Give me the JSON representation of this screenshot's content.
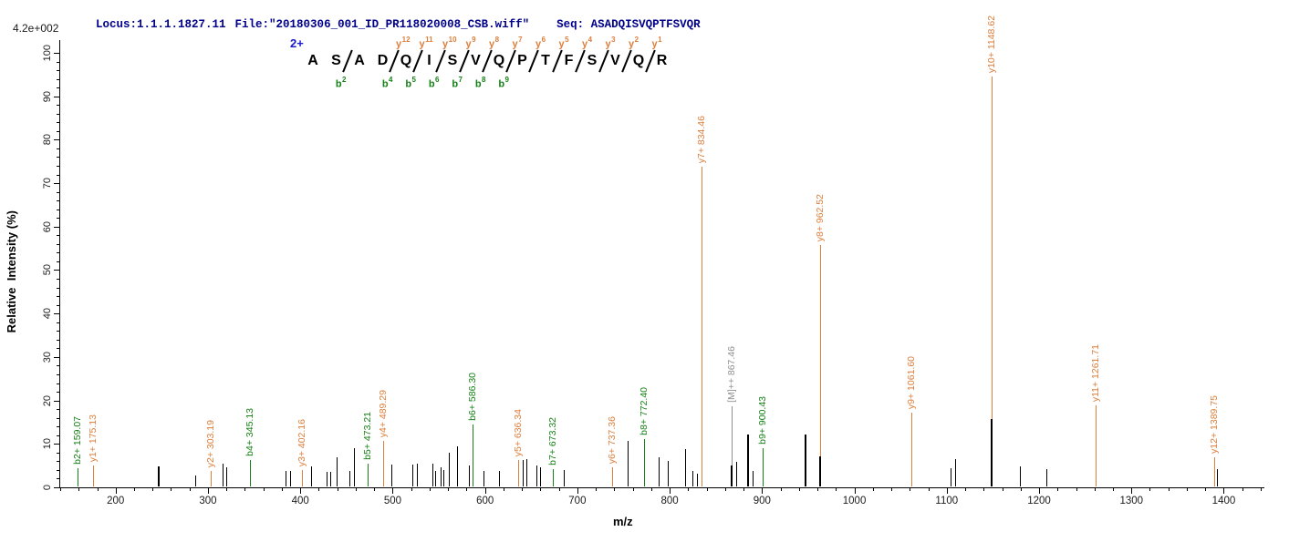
{
  "header": {
    "locus": "Locus:1.1.1.1827.11",
    "file": "File:\"20180306_001_ID_PR118020008_CSB.wiff\"",
    "seq": "Seq: ASADQISVQPTFSVQR"
  },
  "scale_label": "4.2e+002",
  "axes": {
    "y_label": "Relative  Intensity (%)",
    "x_label": "m/z",
    "y_ticks": [
      0,
      10,
      20,
      30,
      40,
      50,
      60,
      70,
      80,
      90,
      100
    ],
    "y_minor_step": 2,
    "x_major_ticks": [
      200,
      300,
      400,
      500,
      600,
      700,
      800,
      900,
      1000,
      1100,
      1200,
      1300,
      1400
    ],
    "x_minor_step": 20,
    "x_range": [
      139,
      1443
    ],
    "y_range": [
      0,
      100
    ]
  },
  "sequence": {
    "charge": "2+",
    "residues": "ASADQISVQPTFSVQR",
    "cleavages": [
      {
        "after": 2,
        "b": "b2"
      },
      {
        "after": 4,
        "y": "y12",
        "b": "b4"
      },
      {
        "after": 5,
        "y": "y11",
        "b": "b5"
      },
      {
        "after": 6,
        "y": "y10",
        "b": "b6"
      },
      {
        "after": 7,
        "y": "y9",
        "b": "b7"
      },
      {
        "after": 8,
        "y": "y8",
        "b": "b8"
      },
      {
        "after": 9,
        "y": "y7",
        "b": "b9"
      },
      {
        "after": 10,
        "y": "y6"
      },
      {
        "after": 11,
        "y": "y5"
      },
      {
        "after": 12,
        "y": "y4"
      },
      {
        "after": 13,
        "y": "y3"
      },
      {
        "after": 14,
        "y": "y2"
      },
      {
        "after": 15,
        "y": "y1"
      }
    ]
  },
  "chart_data": {
    "type": "bar",
    "subtype": "ms2-centroid-spectrum",
    "title": "MS/MS spectrum of ASADQISVQPTFSVQR (2+)",
    "xlabel": "m/z",
    "ylabel": "Relative  Intensity (%)",
    "xlim": [
      139,
      1443
    ],
    "ylim": [
      0,
      100
    ],
    "base_peak_intensity": "4.2e+002",
    "labeled_peaks": [
      {
        "label": "b2+ 159.07",
        "mz": 159.07,
        "intensity": 4.2,
        "type": "b"
      },
      {
        "label": "y1+ 175.13",
        "mz": 175.13,
        "intensity": 4.8,
        "type": "y"
      },
      {
        "label": "y2+ 303.19",
        "mz": 303.19,
        "intensity": 3.6,
        "type": "y"
      },
      {
        "label": "b4+ 345.13",
        "mz": 345.13,
        "intensity": 6.1,
        "type": "b"
      },
      {
        "label": "y3+ 402.16",
        "mz": 402.16,
        "intensity": 3.8,
        "type": "y"
      },
      {
        "label": "b5+ 473.21",
        "mz": 473.21,
        "intensity": 5.2,
        "type": "b"
      },
      {
        "label": "y4+ 489.29",
        "mz": 489.29,
        "intensity": 10.5,
        "type": "y"
      },
      {
        "label": "b6+ 586.30",
        "mz": 586.3,
        "intensity": 14.3,
        "type": "b"
      },
      {
        "label": "y5+ 636.34",
        "mz": 636.34,
        "intensity": 6.0,
        "type": "y"
      },
      {
        "label": "b7+ 673.32",
        "mz": 673.32,
        "intensity": 4.0,
        "type": "b"
      },
      {
        "label": "y6+ 737.36",
        "mz": 737.36,
        "intensity": 4.5,
        "type": "y"
      },
      {
        "label": "b8+ 772.40",
        "mz": 772.4,
        "intensity": 11.0,
        "type": "b"
      },
      {
        "label": "y7+ 834.46",
        "mz": 834.46,
        "intensity": 73.5,
        "type": "y"
      },
      {
        "label": "[M]++ 867.46",
        "mz": 867.46,
        "intensity": 18.5,
        "type": "precursor"
      },
      {
        "label": "b9+ 900.43",
        "mz": 900.43,
        "intensity": 8.8,
        "type": "b"
      },
      {
        "label": "y8+ 962.52",
        "mz": 962.52,
        "intensity": 55.6,
        "type": "y"
      },
      {
        "label": "y9+ 1061.60",
        "mz": 1061.6,
        "intensity": 17.0,
        "type": "y"
      },
      {
        "label": "y10+ 1148.62",
        "mz": 1148.62,
        "intensity": 94.4,
        "type": "y"
      },
      {
        "label": "y11+ 1261.71",
        "mz": 1261.71,
        "intensity": 18.7,
        "type": "y"
      },
      {
        "label": "y12+ 1389.75",
        "mz": 1389.75,
        "intensity": 6.7,
        "type": "y"
      }
    ],
    "unlabeled_peaks": [
      [
        246,
        4.6,
        2
      ],
      [
        286,
        2.5
      ],
      [
        316,
        5.2
      ],
      [
        320,
        4.4
      ],
      [
        384,
        3.5
      ],
      [
        389,
        3.5
      ],
      [
        412,
        4.6
      ],
      [
        428,
        3.3
      ],
      [
        432,
        3.3
      ],
      [
        439,
        6.7
      ],
      [
        453,
        3.6
      ],
      [
        458,
        8.8
      ],
      [
        499,
        5.0
      ],
      [
        521,
        5.0
      ],
      [
        526,
        5.3
      ],
      [
        543,
        5.2
      ],
      [
        546,
        3.5
      ],
      [
        552,
        4.5
      ],
      [
        555,
        3.7
      ],
      [
        561,
        7.8
      ],
      [
        570,
        9.2
      ],
      [
        583,
        4.8
      ],
      [
        598,
        3.6
      ],
      [
        615,
        3.6
      ],
      [
        641,
        6.0
      ],
      [
        645,
        6.3
      ],
      [
        656,
        4.8
      ],
      [
        660,
        4.4
      ],
      [
        685,
        3.8
      ],
      [
        754,
        10.5
      ],
      [
        788,
        6.7
      ],
      [
        798,
        5.9
      ],
      [
        817,
        8.6
      ],
      [
        825,
        3.6
      ],
      [
        830,
        3.0
      ],
      [
        866,
        4.8,
        2
      ],
      [
        872,
        5.7
      ],
      [
        884,
        12.0,
        2
      ],
      [
        890,
        3.6
      ],
      [
        946,
        12.0,
        2
      ],
      [
        962,
        7.0,
        2
      ],
      [
        1104,
        4.2
      ],
      [
        1109,
        6.3
      ],
      [
        1148,
        15.5,
        2
      ],
      [
        1179,
        4.6
      ],
      [
        1208,
        4.0
      ],
      [
        1393,
        4.0
      ]
    ]
  },
  "colors": {
    "y_ion": "#dd7e3a",
    "b_ion": "#158015",
    "precursor": "#8f8f8f",
    "peak": "#000000",
    "header_text": "#00008b",
    "charge": "#1a1acd",
    "axis": "#000000",
    "background": "#ffffff"
  }
}
